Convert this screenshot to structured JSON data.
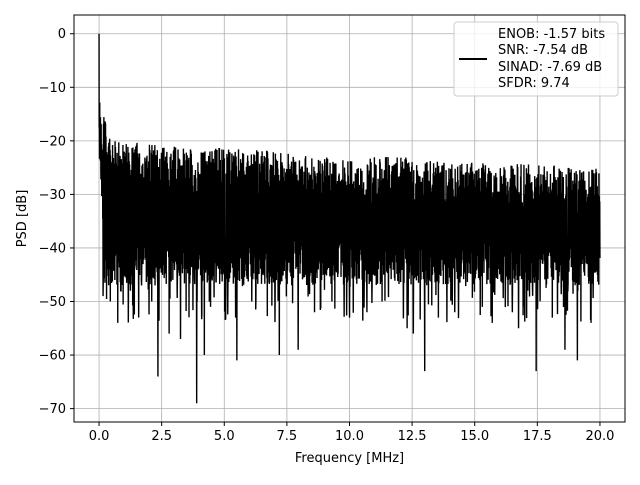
{
  "chart_data": {
    "type": "line",
    "title": "",
    "xlabel": "Frequency [MHz]",
    "ylabel": "PSD [dB]",
    "xlim": [
      -1.0,
      21.0
    ],
    "ylim": [
      -72.5,
      3.5
    ],
    "xticks": [
      0.0,
      2.5,
      5.0,
      7.5,
      10.0,
      12.5,
      15.0,
      17.5,
      20.0
    ],
    "xtick_labels": [
      "0.0",
      "2.5",
      "5.0",
      "7.5",
      "10.0",
      "12.5",
      "15.0",
      "17.5",
      "20.0"
    ],
    "yticks": [
      0,
      -10,
      -20,
      -30,
      -40,
      -50,
      -60,
      -70
    ],
    "ytick_labels": [
      "0",
      "−10",
      "−20",
      "−30",
      "−40",
      "−50",
      "−60",
      "−70"
    ],
    "grid": true,
    "legend_position": "top-right",
    "legend_lines": [
      "ENOB: -1.57 bits",
      "SNR: -7.54 dB",
      "SINAD: -7.69 dB",
      "SFDR: 9.74"
    ],
    "series": [
      {
        "color": "#000000",
        "style": "dense-noise",
        "x_range": [
          0.0,
          20.0
        ],
        "peak": {
          "x": 0.0,
          "y": 0.0
        },
        "envelope_top": [
          {
            "x": 0.05,
            "y": -10
          },
          {
            "x": 0.3,
            "y": -18
          },
          {
            "x": 0.6,
            "y": -20
          },
          {
            "x": 1.0,
            "y": -20
          },
          {
            "x": 3.0,
            "y": -21
          },
          {
            "x": 6.0,
            "y": -21.5
          },
          {
            "x": 9.0,
            "y": -23
          },
          {
            "x": 12.0,
            "y": -23
          },
          {
            "x": 15.0,
            "y": -24
          },
          {
            "x": 18.0,
            "y": -24.5
          },
          {
            "x": 20.0,
            "y": -25
          }
        ],
        "envelope_mean": -34,
        "deep_dips": [
          {
            "x": 0.1,
            "y": -49
          },
          {
            "x": 0.45,
            "y": -50
          },
          {
            "x": 0.75,
            "y": -54
          },
          {
            "x": 1.25,
            "y": -48
          },
          {
            "x": 1.7,
            "y": -47
          },
          {
            "x": 2.1,
            "y": -50
          },
          {
            "x": 2.35,
            "y": -64
          },
          {
            "x": 2.8,
            "y": -56
          },
          {
            "x": 3.25,
            "y": -57
          },
          {
            "x": 3.9,
            "y": -69
          },
          {
            "x": 4.2,
            "y": -60
          },
          {
            "x": 4.45,
            "y": -51
          },
          {
            "x": 5.5,
            "y": -61
          },
          {
            "x": 5.45,
            "y": -53
          },
          {
            "x": 6.1,
            "y": -50
          },
          {
            "x": 7.2,
            "y": -60
          },
          {
            "x": 7.95,
            "y": -59
          },
          {
            "x": 8.6,
            "y": -52
          },
          {
            "x": 9.3,
            "y": -50
          },
          {
            "x": 10.0,
            "y": -53
          },
          {
            "x": 10.7,
            "y": -52
          },
          {
            "x": 11.3,
            "y": -50
          },
          {
            "x": 12.3,
            "y": -55
          },
          {
            "x": 12.55,
            "y": -56
          },
          {
            "x": 13.0,
            "y": -63
          },
          {
            "x": 13.55,
            "y": -53
          },
          {
            "x": 14.2,
            "y": -52
          },
          {
            "x": 15.3,
            "y": -51
          },
          {
            "x": 15.7,
            "y": -54
          },
          {
            "x": 16.5,
            "y": -52
          },
          {
            "x": 16.75,
            "y": -55
          },
          {
            "x": 17.45,
            "y": -63
          },
          {
            "x": 18.1,
            "y": -53
          },
          {
            "x": 18.6,
            "y": -59
          },
          {
            "x": 19.1,
            "y": -61
          },
          {
            "x": 19.9,
            "y": -45
          }
        ]
      }
    ]
  }
}
